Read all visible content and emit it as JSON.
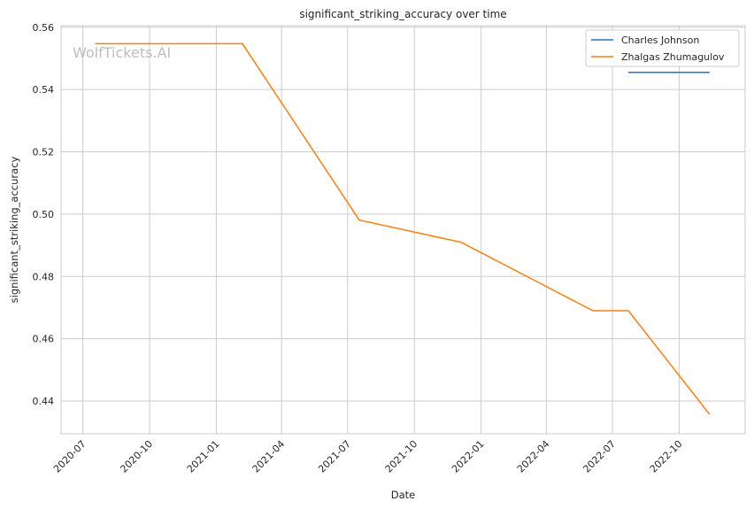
{
  "chart_data": {
    "type": "line",
    "title": "significant_striking_accuracy over time",
    "xlabel": "Date",
    "ylabel": "significant_striking_accuracy",
    "watermark": "WolfTickets.AI",
    "x_axis": {
      "kind": "date",
      "range": [
        "2020-06-01",
        "2022-12-31"
      ],
      "ticks": [
        "2020-07-01",
        "2020-10-01",
        "2021-01-01",
        "2021-04-01",
        "2021-07-01",
        "2021-10-01",
        "2022-01-01",
        "2022-04-01",
        "2022-07-01",
        "2022-10-01"
      ],
      "tick_labels": [
        "2020-07",
        "2020-10",
        "2021-01",
        "2021-04",
        "2021-07",
        "2021-10",
        "2022-01",
        "2022-04",
        "2022-07",
        "2022-10"
      ]
    },
    "y_axis": {
      "range": [
        0.4295,
        0.5605
      ],
      "ticks": [
        0.44,
        0.46,
        0.48,
        0.5,
        0.52,
        0.54,
        0.56
      ],
      "tick_labels": [
        "0.44",
        "0.46",
        "0.48",
        "0.50",
        "0.52",
        "0.54",
        "0.56"
      ]
    },
    "grid": true,
    "legend_position": "top-right",
    "series": [
      {
        "name": "Charles Johnson",
        "color": "#1f77b4",
        "points": [
          {
            "x": "2022-07-23",
            "y": 0.5455
          },
          {
            "x": "2022-11-12",
            "y": 0.5455
          }
        ]
      },
      {
        "name": "Zhalgas Zhumagulov",
        "color": "#ff7f0e",
        "points": [
          {
            "x": "2020-07-18",
            "y": 0.5547
          },
          {
            "x": "2021-02-06",
            "y": 0.5547
          },
          {
            "x": "2021-07-17",
            "y": 0.4981
          },
          {
            "x": "2021-12-04",
            "y": 0.491
          },
          {
            "x": "2022-06-04",
            "y": 0.469
          },
          {
            "x": "2022-07-23",
            "y": 0.469
          },
          {
            "x": "2022-11-12",
            "y": 0.4357
          }
        ]
      }
    ]
  }
}
